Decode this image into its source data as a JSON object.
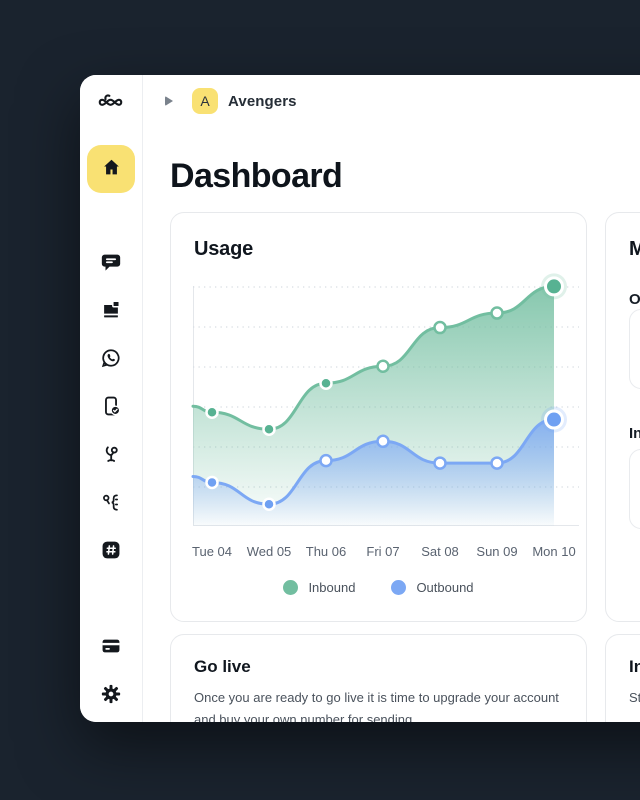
{
  "theme": {
    "background": "#1A232E",
    "surface": "#FFFFFF",
    "accent_yellow": "#F9E173",
    "text_dark": "#10161E",
    "text_gray": "#4A525C",
    "border": "#E7E9EC",
    "inbound_green": "#72BEA0",
    "outbound_blue": "#7CA8F4"
  },
  "sidebar": {
    "icons": [
      "logo-icon",
      "home-icon",
      "chat-icon",
      "inbox-icon",
      "whatsapp-icon",
      "phone-check-icon",
      "voice-icon",
      "connector-icon",
      "hash-icon",
      "billing-card-icon",
      "settings-gear-icon"
    ],
    "active_item": "home"
  },
  "breadcrumb": {
    "team_initial": "A",
    "team_name": "Avengers"
  },
  "page": {
    "title": "Dashboard"
  },
  "usage_card": {
    "title": "Usage"
  },
  "messages_card": {
    "title": "Messages",
    "sections": [
      {
        "label": "Outbound"
      },
      {
        "label": "Inbound"
      }
    ]
  },
  "golive_card": {
    "title": "Go live",
    "body": "Once you are ready to go live it is time to upgrade your account and buy your own number for sending."
  },
  "invoices_card": {
    "title": "Invoices",
    "body": "Start your subscription to see your invoices here."
  },
  "chart_data": {
    "type": "area",
    "title": "Usage",
    "xlabel": "",
    "ylabel": "",
    "categories": [
      "Tue 04",
      "Wed 05",
      "Thu 06",
      "Fri 07",
      "Sat 08",
      "Sun 09",
      "Mon 10"
    ],
    "series": [
      {
        "name": "Inbound",
        "color": "#72BEA0",
        "dot_color": "#57B292",
        "values": [
          47,
          40,
          59,
          66,
          82,
          88,
          99
        ],
        "point_styles": [
          "solid",
          "solid",
          "solid",
          "hollow",
          "hollow",
          "hollow",
          "end"
        ]
      },
      {
        "name": "Outbound",
        "color": "#7CA8F4",
        "dot_color": "#6FA0F2",
        "values": [
          18,
          9,
          27,
          35,
          26,
          26,
          44
        ],
        "point_styles": [
          "solid",
          "solid",
          "hollow",
          "hollow",
          "hollow",
          "hollow",
          "end"
        ]
      }
    ],
    "ylim": [
      0,
      100
    ],
    "grid": "horizontal-dotted",
    "legend_position": "bottom"
  }
}
